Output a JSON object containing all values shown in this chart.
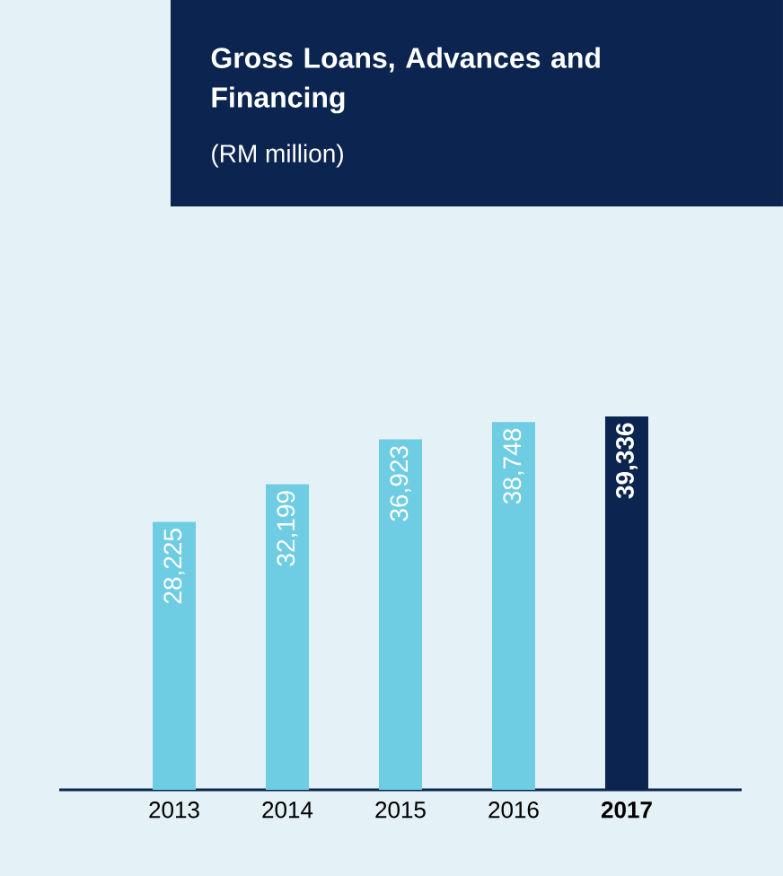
{
  "chart_data": {
    "type": "bar",
    "title": "Gross Loans, Advances and Financing",
    "subtitle": "(RM million)",
    "categories": [
      "2013",
      "2014",
      "2015",
      "2016",
      "**2017**"
    ],
    "values": [
      28225,
      32199,
      36923,
      38748,
      39336
    ],
    "value_labels": [
      "28,225",
      "32,199",
      "36,923",
      "38,748",
      "**39,336**"
    ],
    "colors": [
      "#6ecde3",
      "#6ecde3",
      "#6ecde3",
      "#6ecde3",
      "#0b2550"
    ],
    "tick_labels": "x"
  }
}
